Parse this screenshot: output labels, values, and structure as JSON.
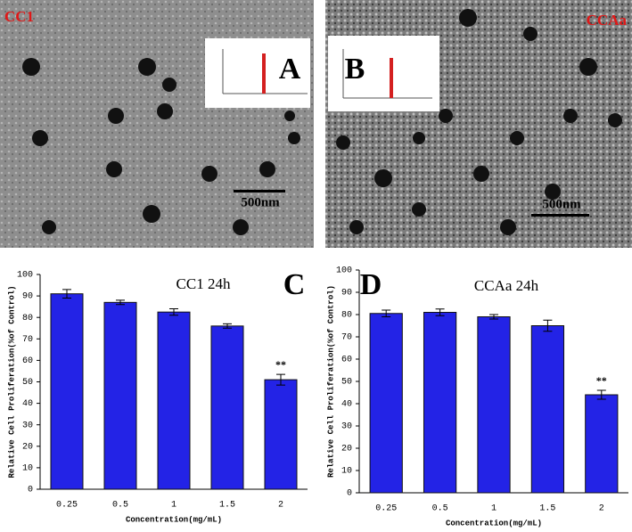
{
  "images": [
    {
      "label": "CC1",
      "panel": "A",
      "scale_bar": "500nm"
    },
    {
      "label": "CCAa",
      "panel": "B",
      "scale_bar": "500nm"
    }
  ],
  "chart_data": [
    {
      "type": "bar",
      "panel": "C",
      "title": "CC1 24h",
      "y_label": "Relative Cell Proliferation(%of Control)",
      "x_label": "Concentration(mg/mL)",
      "categories": [
        "0.25",
        "0.5",
        "1",
        "1.5",
        "2"
      ],
      "series": [
        {
          "name": "CC1",
          "color": "#2323e6",
          "values": [
            91,
            87,
            82.5,
            76,
            51
          ],
          "errors": [
            2,
            1,
            1.5,
            1,
            2.5
          ]
        }
      ],
      "annotations": [
        {
          "category": 4,
          "text": "**"
        }
      ],
      "ylim": [
        0,
        100
      ],
      "yticks": [
        0,
        10,
        20,
        30,
        40,
        50,
        60,
        70,
        80,
        90,
        100
      ]
    },
    {
      "type": "bar",
      "panel": "D",
      "title": "CCAa 24h",
      "y_label": "Relative Cell Proliferation(%of Control)",
      "x_label": "Concentration(mg/mL)",
      "categories": [
        "0.25",
        "0.5",
        "1",
        "1.5",
        "2"
      ],
      "series": [
        {
          "name": "CCAa",
          "color": "#2323e6",
          "values": [
            80.5,
            81,
            79,
            75,
            44
          ],
          "errors": [
            1.5,
            1.5,
            1,
            2.5,
            2
          ]
        }
      ],
      "annotations": [
        {
          "category": 4,
          "text": "**"
        }
      ],
      "ylim": [
        0,
        100
      ],
      "yticks": [
        0,
        10,
        20,
        30,
        40,
        50,
        60,
        70,
        80,
        90,
        100
      ]
    }
  ]
}
